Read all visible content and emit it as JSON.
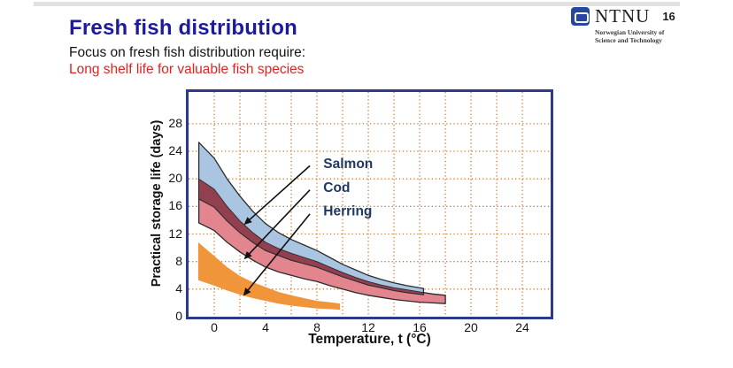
{
  "slide": {
    "title": "Fresh fish distribution",
    "subtitle": "Focus on fresh fish distribution require:",
    "highlight": "Long shelf life for valuable fish species",
    "page_number": "16"
  },
  "logo": {
    "name": "NTNU",
    "subtext_line1": "Norwegian University of",
    "subtext_line2": "Science and Technology"
  },
  "colors": {
    "title_blue": "#1b1b9b",
    "highlight_red": "#e32222",
    "plot_border": "#2d3a8c",
    "grid_orange": "#c97c38",
    "salmon_fill": "#aac5e2",
    "cod_fill": "#e2858f",
    "overlap_fill": "#92404f",
    "herring_fill": "#f0953a",
    "band_outline": "#2b2b2b",
    "annotation_navy": "#1f3864"
  },
  "chart_data": {
    "type": "area",
    "title": "",
    "xlabel": "Temperature, t (°C)",
    "ylabel": "Practical storage life (days)",
    "xlim": [
      -2,
      26.2
    ],
    "ylim": [
      0,
      32.6
    ],
    "x_ticks": [
      0,
      4,
      8,
      12,
      16,
      20,
      24
    ],
    "y_ticks": [
      0,
      4,
      8,
      12,
      16,
      20,
      24,
      28
    ],
    "x_grid_step": 2,
    "y_grid_step": 4,
    "grid": "dotted",
    "legend_position": "none",
    "series": [
      {
        "name": "Salmon",
        "fill": "#aac5e2",
        "outline": true,
        "points": [
          [
            -1.2,
            25.3,
            17.1
          ],
          [
            0,
            23.0,
            15.9
          ],
          [
            1,
            20.0,
            13.9
          ],
          [
            2,
            17.5,
            12.2
          ],
          [
            3,
            15.3,
            10.8
          ],
          [
            4,
            13.5,
            9.6
          ],
          [
            5,
            12.2,
            8.9
          ],
          [
            6,
            11.2,
            8.2
          ],
          [
            7,
            10.4,
            7.7
          ],
          [
            8,
            9.6,
            7.2
          ],
          [
            9,
            8.6,
            6.5
          ],
          [
            10,
            7.6,
            5.8
          ],
          [
            11,
            6.8,
            5.2
          ],
          [
            12,
            6.0,
            4.6
          ],
          [
            13,
            5.4,
            4.2
          ],
          [
            14,
            4.9,
            3.8
          ],
          [
            15,
            4.5,
            3.5
          ],
          [
            16.3,
            4.1,
            3.2
          ]
        ]
      },
      {
        "name": "Cod",
        "fill": "#e2858f",
        "outline": true,
        "points": [
          [
            -1.2,
            20.0,
            13.6
          ],
          [
            0,
            18.5,
            12.5
          ],
          [
            1,
            16.0,
            10.8
          ],
          [
            2,
            13.9,
            9.4
          ],
          [
            3,
            12.2,
            8.2
          ],
          [
            4,
            10.8,
            7.2
          ],
          [
            5,
            9.9,
            6.5
          ],
          [
            6,
            9.2,
            6.0
          ],
          [
            7,
            8.6,
            5.5
          ],
          [
            8,
            8.0,
            5.1
          ],
          [
            9,
            7.2,
            4.5
          ],
          [
            10,
            6.4,
            4.0
          ],
          [
            11,
            5.7,
            3.5
          ],
          [
            12,
            5.1,
            3.1
          ],
          [
            13,
            4.6,
            2.8
          ],
          [
            14,
            4.2,
            2.5
          ],
          [
            15,
            3.9,
            2.3
          ],
          [
            16,
            3.6,
            2.1
          ],
          [
            17,
            3.3,
            2.0
          ],
          [
            18,
            3.1,
            1.9
          ]
        ]
      },
      {
        "name": "Herring",
        "fill": "#f0953a",
        "outline": false,
        "points": [
          [
            -1.25,
            10.8,
            5.3
          ],
          [
            0,
            8.8,
            4.5
          ],
          [
            1,
            7.2,
            3.8
          ],
          [
            2,
            5.9,
            3.2
          ],
          [
            3,
            5.0,
            2.7
          ],
          [
            4,
            4.3,
            2.3
          ],
          [
            5,
            3.6,
            1.9
          ],
          [
            6,
            3.1,
            1.6
          ],
          [
            7,
            2.7,
            1.4
          ],
          [
            8,
            2.3,
            1.2
          ],
          [
            9,
            2.1,
            1.1
          ],
          [
            9.8,
            1.9,
            1.0
          ]
        ]
      }
    ],
    "overlap": {
      "between": [
        "Salmon",
        "Cod"
      ],
      "fill": "#92404f"
    },
    "annotations": [
      {
        "label": "Salmon",
        "label_t": 8.5,
        "label_d": 22.3,
        "from_t": 7.45,
        "from_d": 21.9,
        "tip_t": 2.41,
        "tip_d": 13.5
      },
      {
        "label": "Cod",
        "label_t": 8.5,
        "label_d": 18.8,
        "from_t": 7.45,
        "from_d": 18.4,
        "tip_t": 2.41,
        "tip_d": 8.5
      },
      {
        "label": "Herring",
        "label_t": 8.5,
        "label_d": 15.4,
        "from_t": 7.45,
        "from_d": 14.9,
        "tip_t": 2.34,
        "tip_d": 3.2
      }
    ]
  }
}
